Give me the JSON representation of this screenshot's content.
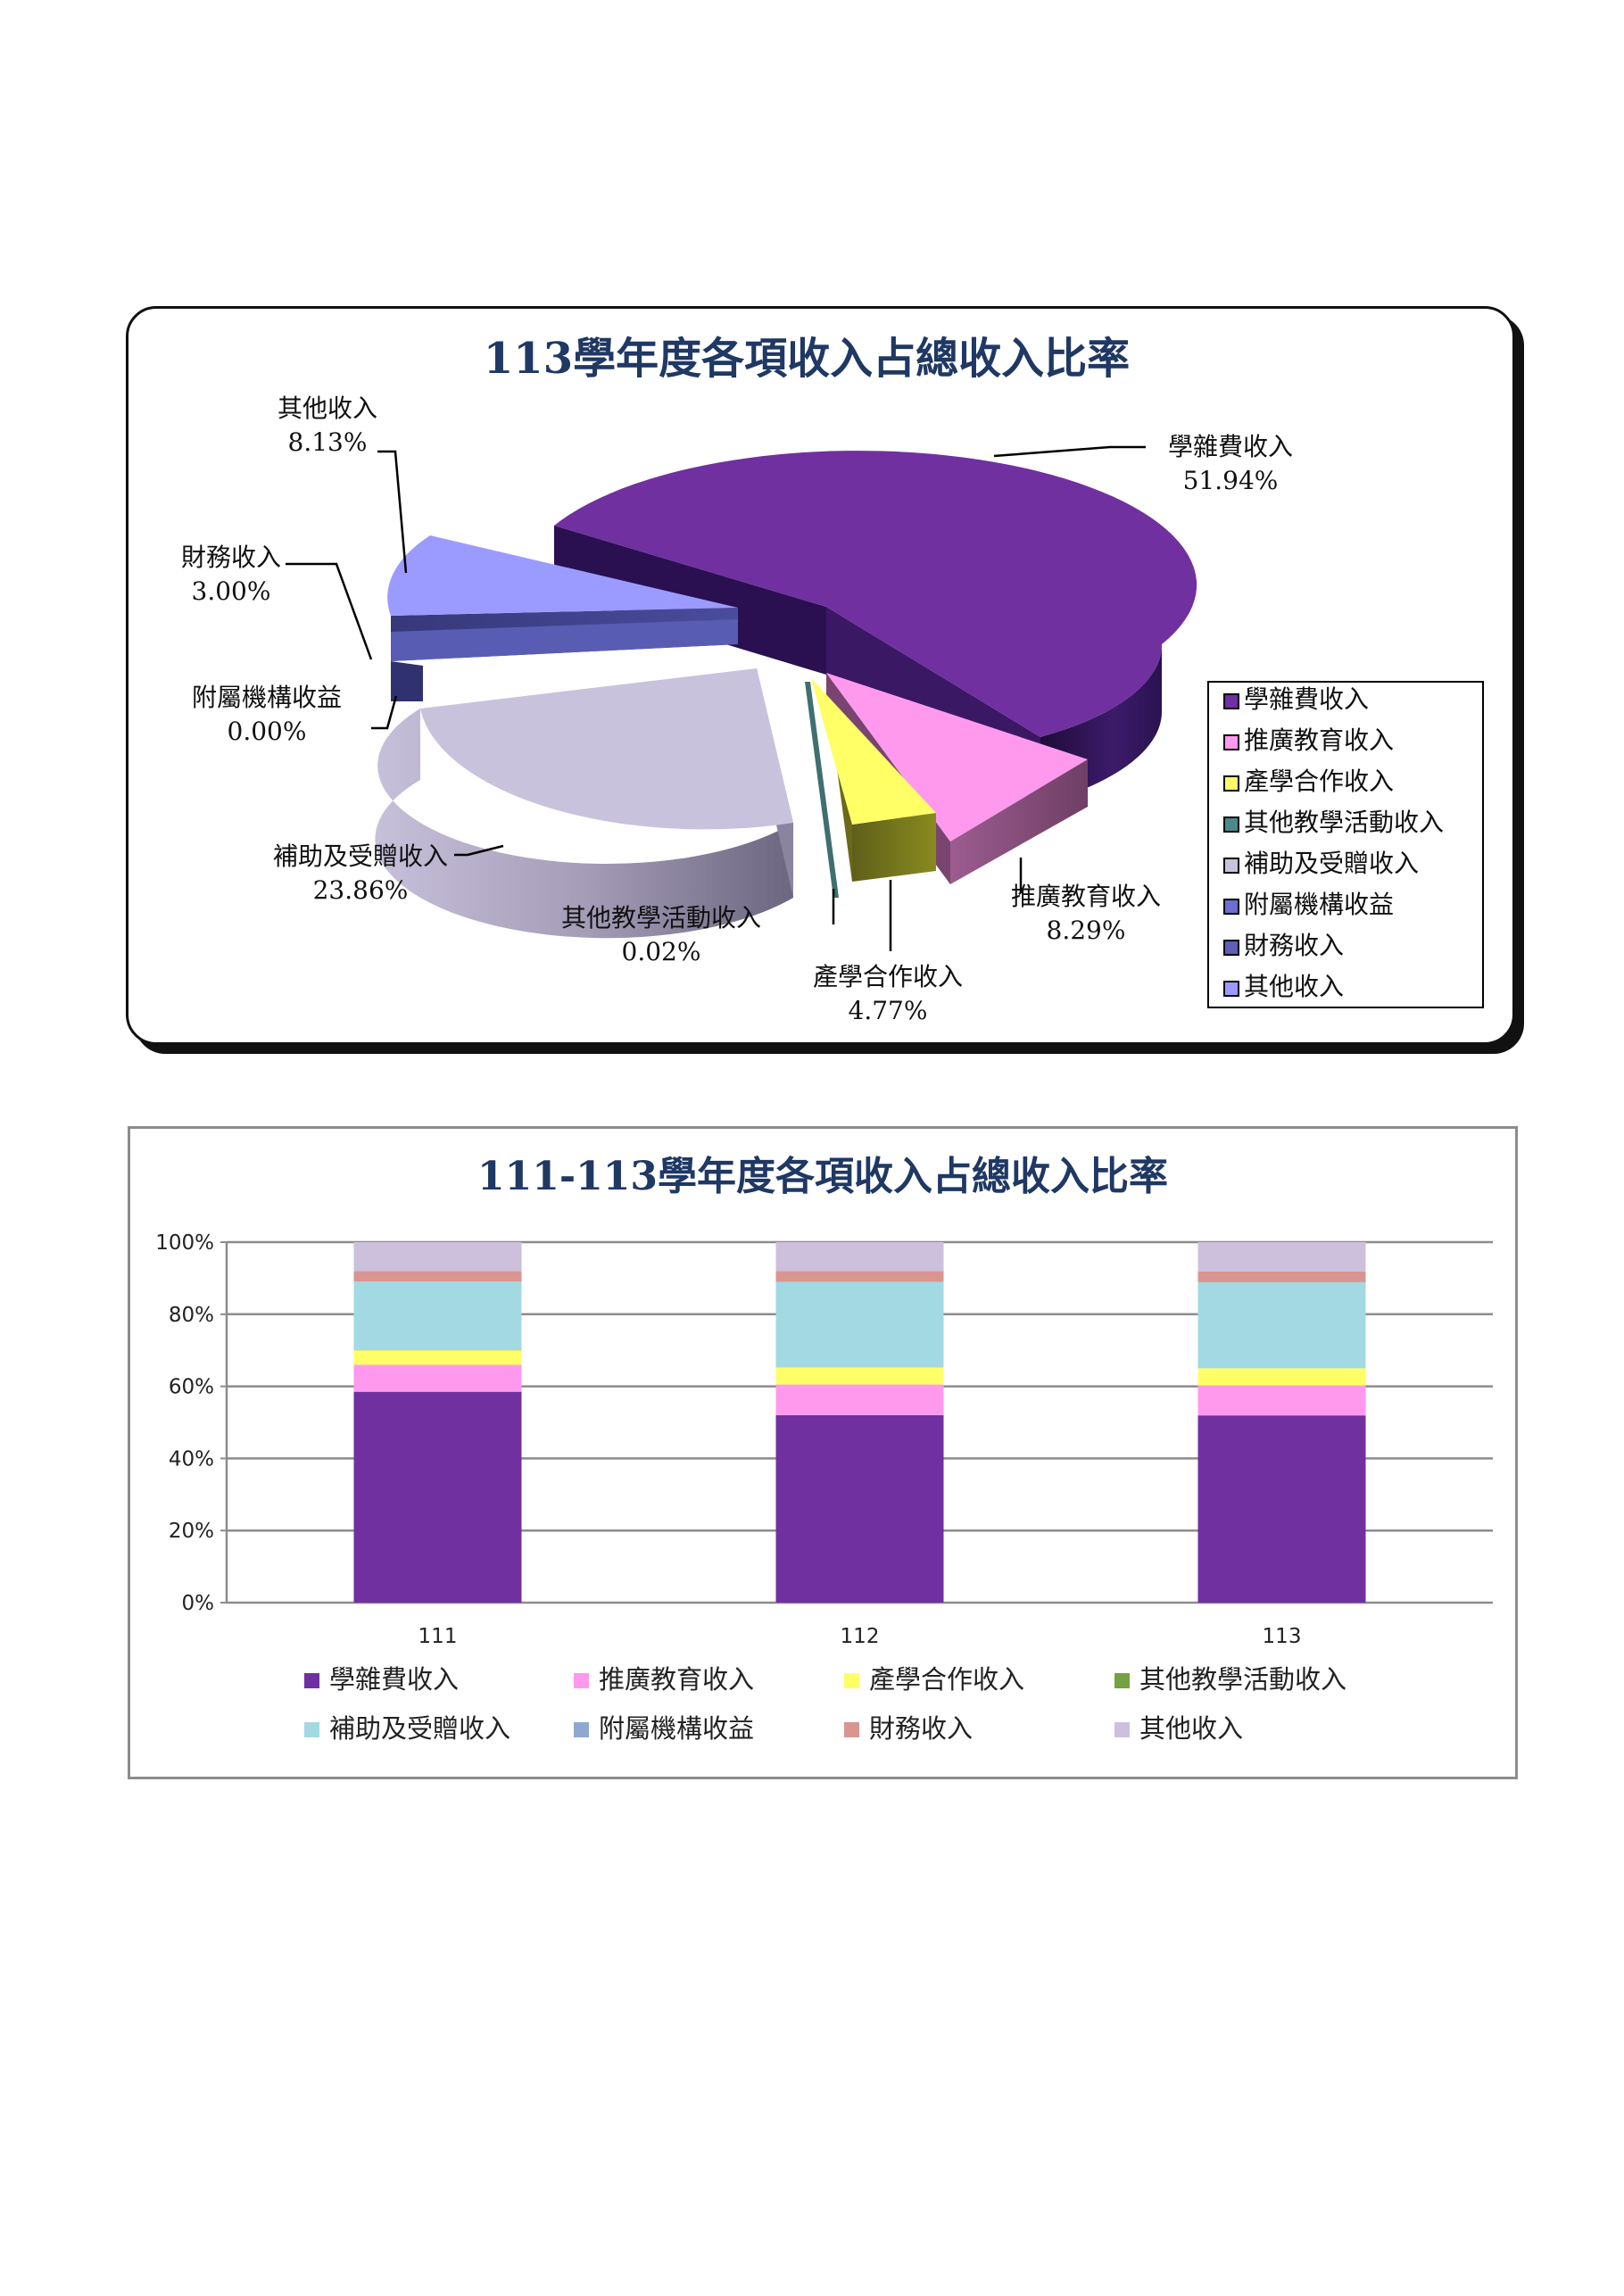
{
  "chart_data": [
    {
      "type": "pie",
      "title": "113學年度各項收入占總收入比率",
      "slices": [
        {
          "label": "學雜費收入",
          "value": 51.94,
          "display": "51.94%",
          "color": "#7030a0"
        },
        {
          "label": "推廣教育收入",
          "value": 8.29,
          "display": "8.29%",
          "color": "#ff99ee"
        },
        {
          "label": "產學合作收入",
          "value": 4.77,
          "display": "4.77%",
          "color": "#ffff66"
        },
        {
          "label": "其他教學活動收入",
          "value": 0.02,
          "display": "0.02%",
          "color": "#4a8a8a"
        },
        {
          "label": "補助及受贈收入",
          "value": 23.86,
          "display": "23.86%",
          "color": "#c9c2dc"
        },
        {
          "label": "附屬機構收益",
          "value": 0.0,
          "display": "0.00%",
          "color": "#6b6fcf"
        },
        {
          "label": "財務收入",
          "value": 3.0,
          "display": "3.00%",
          "color": "#5c60b8"
        },
        {
          "label": "其他收入",
          "value": 8.13,
          "display": "8.13%",
          "color": "#9b9bff"
        }
      ],
      "legend": [
        "學雜費收入",
        "推廣教育收入",
        "產學合作收入",
        "其他教學活動收入",
        "補助及受贈收入",
        "附屬機構收益",
        "財務收入",
        "其他收入"
      ],
      "legend_position": "right"
    },
    {
      "type": "bar",
      "stacked": true,
      "percent": true,
      "title": "111-113學年度各項收入占總收入比率",
      "categories": [
        "111",
        "112",
        "113"
      ],
      "ylim": [
        0,
        100
      ],
      "yticks": [
        "0%",
        "20%",
        "40%",
        "60%",
        "80%",
        "100%"
      ],
      "grid": true,
      "legend_position": "bottom",
      "series": [
        {
          "name": "學雜費收入",
          "color": "#7030a0",
          "values": [
            58.5,
            52.0,
            51.94
          ]
        },
        {
          "name": "推廣教育收入",
          "color": "#ff99ee",
          "values": [
            7.5,
            8.5,
            8.29
          ]
        },
        {
          "name": "產學合作收入",
          "color": "#ffff66",
          "values": [
            4.0,
            4.8,
            4.77
          ]
        },
        {
          "name": "其他教學活動收入",
          "color": "#77a040",
          "values": [
            0.1,
            0.1,
            0.02
          ]
        },
        {
          "name": "補助及受贈收入",
          "color": "#a3d9e3",
          "values": [
            19.0,
            23.6,
            23.86
          ]
        },
        {
          "name": "附屬機構收益",
          "color": "#8fa8d0",
          "values": [
            0.0,
            0.0,
            0.0
          ]
        },
        {
          "name": "財務收入",
          "color": "#d99590",
          "values": [
            2.9,
            3.0,
            3.0
          ]
        },
        {
          "name": "其他收入",
          "color": "#ccc0dc",
          "values": [
            8.0,
            8.0,
            8.13
          ]
        }
      ]
    }
  ]
}
